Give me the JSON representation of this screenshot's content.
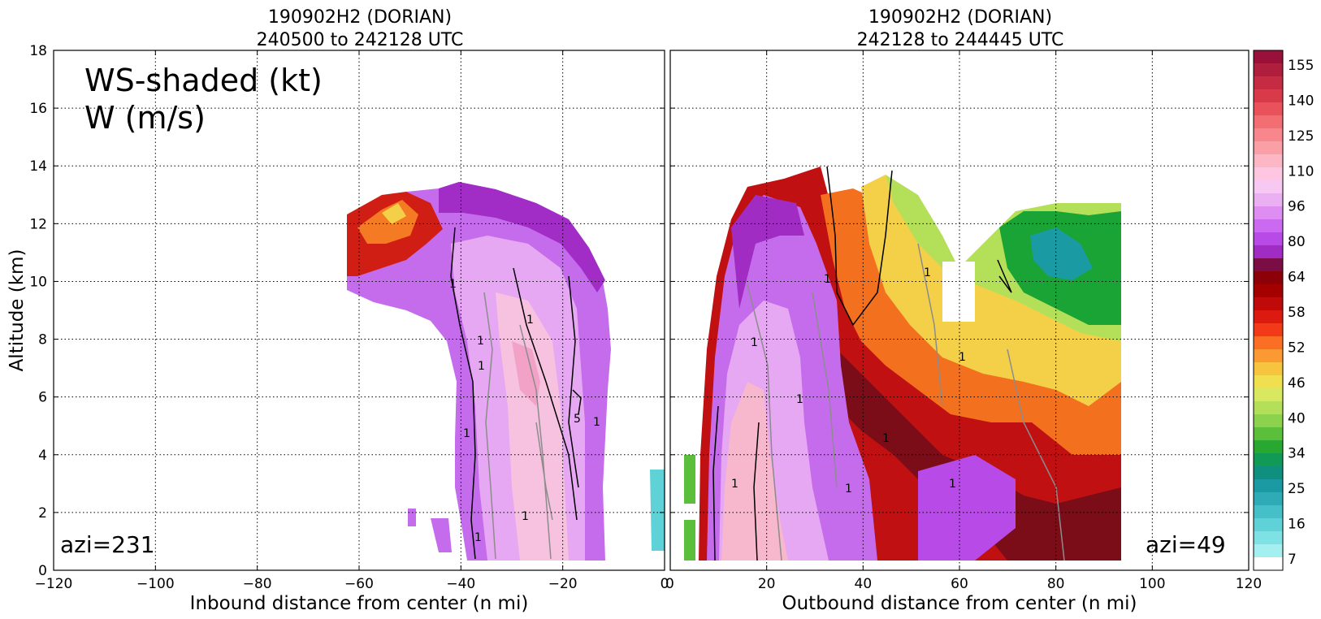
{
  "chart_data": [
    {
      "type": "heatmap",
      "panel": "left",
      "title": "190902H2 (DORIAN)",
      "subtitle": "240500 to 242128 UTC",
      "xlabel": "Inbound distance from center (n mi)",
      "ylabel": "Altitude (km)",
      "xlim": [
        -120,
        0
      ],
      "ylim": [
        0,
        18
      ],
      "xticks": [
        "−120",
        "−100",
        "−80",
        "−60",
        "−40",
        "−20",
        "0"
      ],
      "yticks": [
        "0",
        "2",
        "4",
        "6",
        "8",
        "10",
        "12",
        "14",
        "16",
        "18"
      ],
      "grid": true,
      "annotation_title": [
        "WS-shaded (kt)",
        "W (m/s)"
      ],
      "azi_label": "azi=231",
      "contour_labels": [
        "1",
        "1",
        "1",
        "1",
        "1",
        "1",
        "5",
        "1",
        "1"
      ]
    },
    {
      "type": "heatmap",
      "panel": "right",
      "title": "190902H2 (DORIAN)",
      "subtitle": "242128 to 244445 UTC",
      "xlabel": "Outbound distance from center (n mi)",
      "xlim": [
        0,
        120
      ],
      "ylim": [
        0,
        18
      ],
      "xticks": [
        "0",
        "20",
        "40",
        "60",
        "80",
        "100",
        "120"
      ],
      "grid": true,
      "azi_label": "azi=49",
      "contour_labels": [
        "1",
        "1",
        "1",
        "1",
        "1",
        "1",
        "1",
        "1",
        "1"
      ]
    }
  ],
  "colorbar": {
    "ticks": [
      "155",
      "140",
      "125",
      "110",
      "96",
      "80",
      "64",
      "58",
      "52",
      "46",
      "40",
      "34",
      "25",
      "16",
      "7"
    ],
    "colors": [
      "#99103a",
      "#b01e3e",
      "#c52c44",
      "#d83a4a",
      "#e9525a",
      "#f26e73",
      "#f7878c",
      "#fb9fa6",
      "#fdb6c4",
      "#fec6e0",
      "#f6c8f2",
      "#ebb0f2",
      "#dd8ef0",
      "#cb6af0",
      "#b84ae8",
      "#a02cc4",
      "#7a0d44",
      "#8c0008",
      "#a50000",
      "#c00a0a",
      "#dd1a10",
      "#f23a18",
      "#fb6f24",
      "#fb9a32",
      "#f7c440",
      "#f0e050",
      "#d8e860",
      "#b4df58",
      "#8cd24c",
      "#5cbf3c",
      "#28a830",
      "#109a56",
      "#0f8f7e",
      "#1a9aa2",
      "#2eabb6",
      "#46c0c8",
      "#5ed2d6",
      "#7ee2e4",
      "#a4f0f0",
      "#ffffff"
    ]
  }
}
